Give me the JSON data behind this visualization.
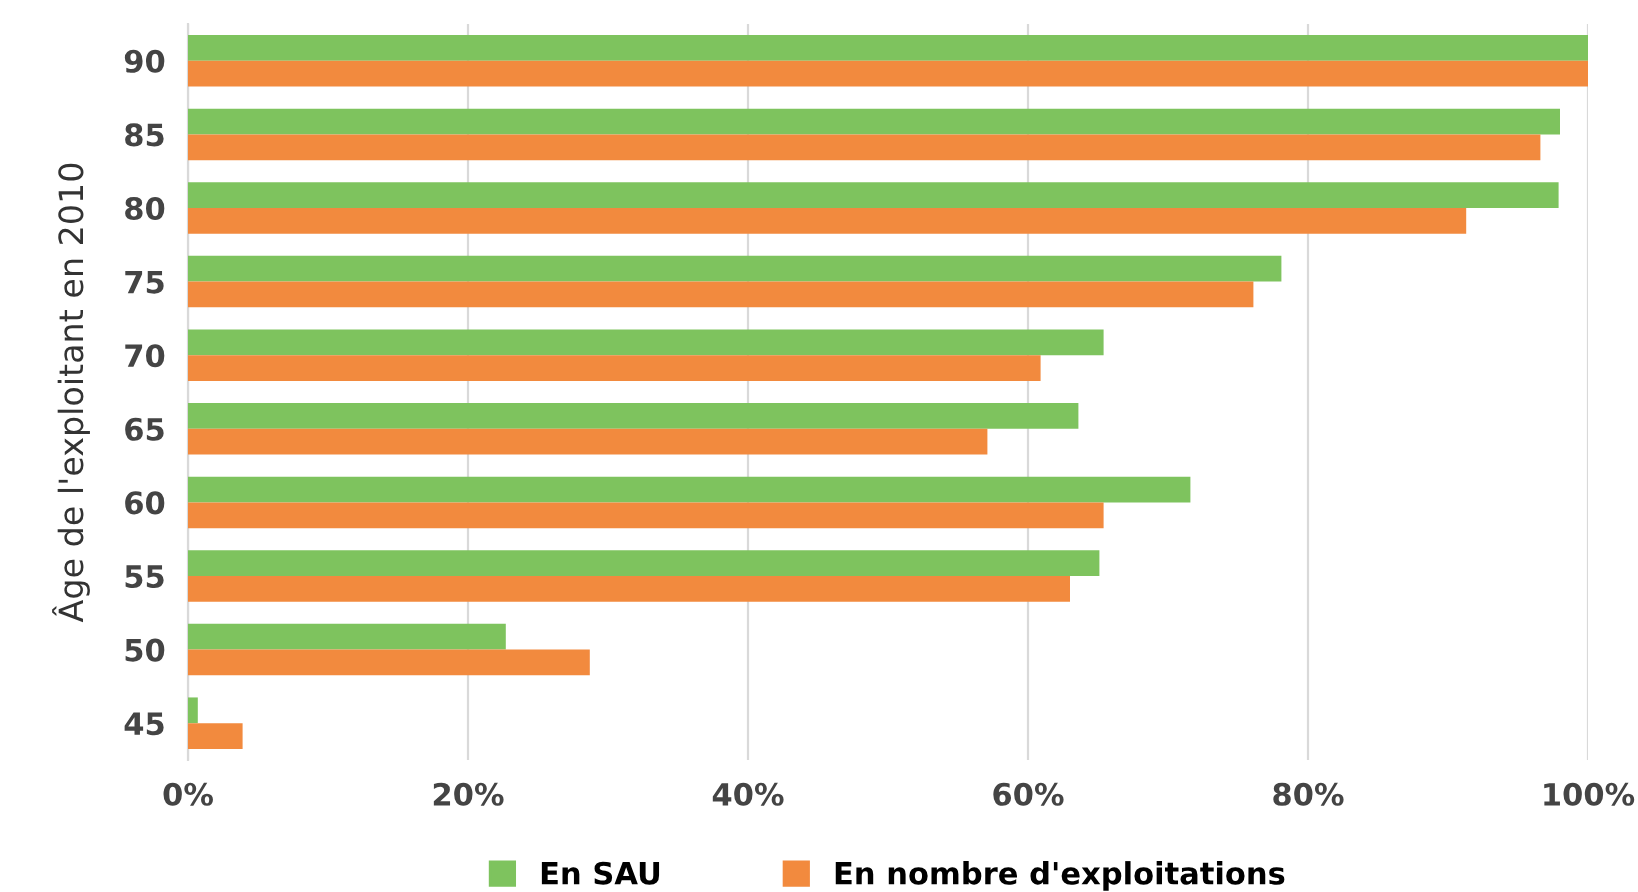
{
  "chart_data": {
    "type": "bar",
    "orientation": "horizontal",
    "ylabel": "Âge de l'exploitant en 2010",
    "categories": [
      "90",
      "85",
      "80",
      "75",
      "70",
      "65",
      "60",
      "55",
      "50",
      "45"
    ],
    "series": [
      {
        "name": "En SAU",
        "color": "#7ec35e",
        "values": [
          100,
          98.0,
          97.9,
          78.1,
          65.4,
          63.6,
          71.6,
          65.1,
          22.7,
          0.7
        ]
      },
      {
        "name": "En nombre d'exploitations",
        "color": "#f28a3e",
        "values": [
          100,
          96.6,
          91.3,
          76.1,
          60.9,
          57.1,
          65.4,
          63.0,
          28.7,
          3.9
        ]
      }
    ],
    "xlim": [
      0,
      100
    ],
    "xticks": [
      {
        "value": 0,
        "label": "0%"
      },
      {
        "value": 20,
        "label": "20%"
      },
      {
        "value": 40,
        "label": "40%"
      },
      {
        "value": 60,
        "label": "60%"
      },
      {
        "value": 80,
        "label": "80%"
      },
      {
        "value": 100,
        "label": "100%"
      }
    ],
    "grid": "x",
    "legend": "bottom"
  }
}
